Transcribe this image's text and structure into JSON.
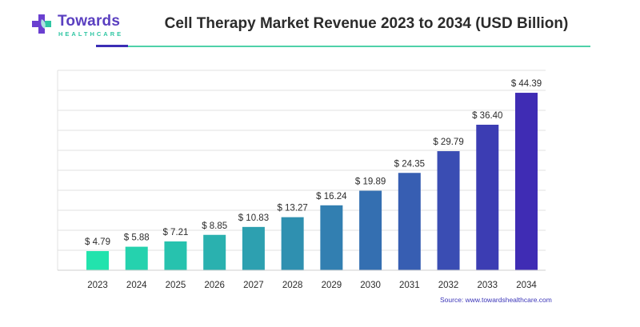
{
  "brand": {
    "name": "Towards",
    "tagline": "HEALTHCARE"
  },
  "colors": {
    "bar_start": "#22e3ad",
    "bar_end": "#3f2cb4",
    "grid": "#e2e2e2",
    "brand_purple": "#5a3fc0",
    "brand_teal": "#2fc6a3"
  },
  "source": "Source: www.towardshealthcare.com",
  "chart_data": {
    "type": "bar",
    "title": "Cell Therapy Market Revenue 2023 to 2034 (USD Billion)",
    "categories": [
      "2023",
      "2024",
      "2025",
      "2026",
      "2027",
      "2028",
      "2029",
      "2030",
      "2031",
      "2032",
      "2033",
      "2034"
    ],
    "values": [
      4.79,
      5.88,
      7.21,
      8.85,
      10.83,
      13.27,
      16.24,
      19.89,
      24.35,
      29.79,
      36.4,
      44.39
    ],
    "value_labels": [
      "$ 4.79",
      "$ 5.88",
      "$ 7.21",
      "$ 8.85",
      "$ 10.83",
      "$ 13.27",
      "$ 16.24",
      "$ 19.89",
      "$ 24.35",
      "$ 29.79",
      "$ 36.40",
      "$ 44.39"
    ],
    "ylim": [
      0,
      50
    ],
    "grid": true,
    "y_axis_labels_shown": false
  }
}
